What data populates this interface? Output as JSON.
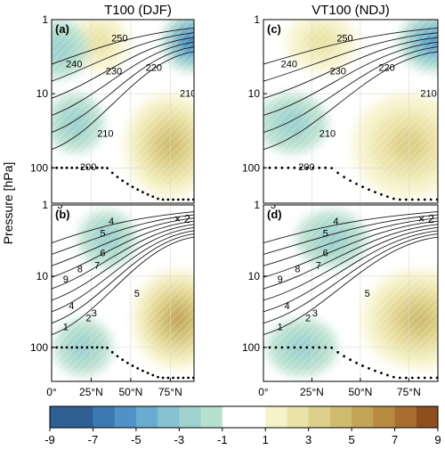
{
  "colors": {
    "negative": [
      "#2f5f93",
      "#3b78b0",
      "#4f93c4",
      "#6aaccf",
      "#86c3d2",
      "#9fd2cf",
      "#b8e0cf"
    ],
    "positive": [
      "#f6f3cb",
      "#ebe3a8",
      "#ddd08a",
      "#cfbd6f",
      "#c2a557",
      "#b88b42",
      "#a86e2f",
      "#8d4f1f"
    ],
    "contour": "#1a1a1a",
    "tropopause_dots": "#000000",
    "grid": "#d9d9d9"
  },
  "figure": {
    "ylabel": "Pressure [hPa]",
    "column_titles": [
      "T100 (DJF)",
      "VT100 (NDJ)"
    ]
  },
  "chart_data": [
    {
      "id": "a",
      "type": "heatmap",
      "panel_label": "(a)",
      "title": "T100 (DJF)",
      "xlabel": "",
      "ylabel": "Pressure [hPa]",
      "xlim": [
        0,
        90
      ],
      "ylim_hPa": [
        1,
        300
      ],
      "yscale": "log",
      "x_ticks": [
        "0°",
        "25°N",
        "50°N",
        "75°N"
      ],
      "y_ticks": [
        "1",
        "10",
        "100"
      ],
      "contour_labels": [
        "250",
        "240",
        "230",
        "220",
        "210",
        "210",
        "200"
      ],
      "contour_levels": [
        200,
        210,
        220,
        230,
        240,
        250
      ],
      "shading_features": [
        {
          "sign": "negative",
          "lat": 88,
          "p": 2,
          "peak": -6
        },
        {
          "sign": "positive",
          "lat": 30,
          "p": 2,
          "peak": 2
        },
        {
          "sign": "positive",
          "lat": 75,
          "p": 50,
          "peak": 4
        },
        {
          "sign": "negative",
          "lat": 15,
          "p": 25,
          "peak": -2
        },
        {
          "sign": "negative",
          "lat": 5,
          "p": 2.5,
          "peak": -1.5
        }
      ],
      "multiplier": ""
    },
    {
      "id": "b",
      "type": "heatmap",
      "panel_label": "(b)",
      "title": "",
      "xlabel": "",
      "ylabel": "Pressure [hPa]",
      "xlim": [
        0,
        90
      ],
      "ylim_hPa": [
        1,
        300
      ],
      "yscale": "log",
      "x_ticks": [
        "0°",
        "25°N",
        "50°N",
        "75°N"
      ],
      "y_ticks": [
        "1",
        "10",
        "100"
      ],
      "contour_labels": [
        "3",
        "4",
        "5",
        "6",
        "7",
        "8",
        "9",
        "5",
        "4",
        "3",
        "2",
        "1"
      ],
      "contour_levels": [
        1,
        2,
        3,
        4,
        5,
        6,
        7,
        8,
        9
      ],
      "shading_features": [
        {
          "sign": "negative",
          "lat": 35,
          "p": 3,
          "peak": -2
        },
        {
          "sign": "positive",
          "lat": 80,
          "p": 40,
          "peak": 5
        },
        {
          "sign": "negative",
          "lat": 20,
          "p": 100,
          "peak": -2
        }
      ],
      "multiplier": "× 2"
    },
    {
      "id": "c",
      "type": "heatmap",
      "panel_label": "(c)",
      "title": "VT100 (NDJ)",
      "xlabel": "",
      "ylabel": "",
      "xlim": [
        0,
        90
      ],
      "ylim_hPa": [
        1,
        300
      ],
      "yscale": "log",
      "x_ticks": [
        "0°",
        "25°N",
        "50°N",
        "75°N"
      ],
      "y_ticks": [
        "1",
        "10",
        "100"
      ],
      "contour_labels": [
        "250",
        "240",
        "230",
        "220",
        "210",
        "210",
        "200"
      ],
      "contour_levels": [
        200,
        210,
        220,
        230,
        240,
        250
      ],
      "shading_features": [
        {
          "sign": "negative",
          "lat": 88,
          "p": 2,
          "peak": -5
        },
        {
          "sign": "positive",
          "lat": 30,
          "p": 2,
          "peak": 2
        },
        {
          "sign": "positive",
          "lat": 75,
          "p": 50,
          "peak": 3
        },
        {
          "sign": "negative",
          "lat": 15,
          "p": 25,
          "peak": -2
        }
      ],
      "multiplier": ""
    },
    {
      "id": "d",
      "type": "heatmap",
      "panel_label": "(d)",
      "title": "",
      "xlabel": "",
      "ylabel": "",
      "xlim": [
        0,
        90
      ],
      "ylim_hPa": [
        1,
        300
      ],
      "yscale": "log",
      "x_ticks": [
        "0°",
        "25°N",
        "50°N",
        "75°N"
      ],
      "y_ticks": [
        "1",
        "10",
        "100"
      ],
      "contour_labels": [
        "3",
        "4",
        "5",
        "6",
        "7",
        "8",
        "9",
        "5",
        "4",
        "3",
        "2",
        "1"
      ],
      "contour_levels": [
        1,
        2,
        3,
        4,
        5,
        6,
        7,
        8,
        9
      ],
      "shading_features": [
        {
          "sign": "negative",
          "lat": 35,
          "p": 3,
          "peak": -2
        },
        {
          "sign": "positive",
          "lat": 80,
          "p": 40,
          "peak": 4
        },
        {
          "sign": "negative",
          "lat": 20,
          "p": 100,
          "peak": -2
        }
      ],
      "multiplier": "× 2"
    }
  ],
  "colorbar": {
    "ticks": [
      "-9",
      "-7",
      "-5",
      "-3",
      "-1",
      "1",
      "3",
      "5",
      "7",
      "9"
    ],
    "levels": [
      -9,
      -8,
      -7,
      -6,
      -5,
      -4,
      -3,
      -2,
      -1,
      1,
      2,
      3,
      4,
      5,
      6,
      7,
      8,
      9
    ]
  }
}
